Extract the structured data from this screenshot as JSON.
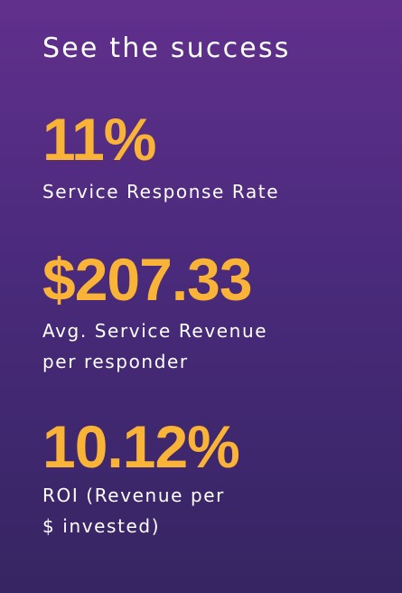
{
  "panel": {
    "headline": "See the success",
    "stats": [
      {
        "value": "11%",
        "label": "Service Response Rate"
      },
      {
        "value": "$207.33",
        "label": "Avg. Service Revenue\nper responder"
      },
      {
        "value": "10.12%",
        "label": "ROI (Revenue per\n$ invested)"
      }
    ]
  },
  "colors": {
    "accent": "#f9b337",
    "background_top": "#61308c",
    "background_bottom": "#362562",
    "text": "#ffffff"
  }
}
